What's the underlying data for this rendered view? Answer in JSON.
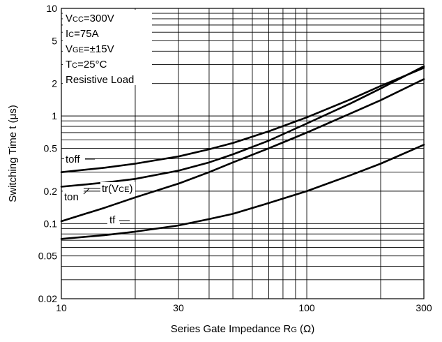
{
  "chart_data": {
    "type": "line",
    "xscale": "log",
    "yscale": "log",
    "xlim": [
      10,
      300
    ],
    "ylim": [
      0.02,
      10
    ],
    "grid": true,
    "xlabel": {
      "main": "Series Gate Impedance R",
      "sub": "G",
      "unit": "(Ω)"
    },
    "ylabel": "Switching Time t  (μs)",
    "x_ticks": [
      {
        "value": 10,
        "label": "10"
      },
      {
        "value": 30,
        "label": "30"
      },
      {
        "value": 100,
        "label": "100"
      },
      {
        "value": 300,
        "label": "300"
      }
    ],
    "y_ticks": [
      {
        "value": 0.02,
        "label": "0.02"
      },
      {
        "value": 0.05,
        "label": "0.05"
      },
      {
        "value": 0.1,
        "label": "0.1"
      },
      {
        "value": 0.2,
        "label": "0.2"
      },
      {
        "value": 0.5,
        "label": "0.5"
      },
      {
        "value": 1,
        "label": "1"
      },
      {
        "value": 2,
        "label": "2"
      },
      {
        "value": 5,
        "label": "5"
      },
      {
        "value": 10,
        "label": "10"
      }
    ],
    "conditions": [
      {
        "main": "V",
        "sub": "CC",
        "rest": "=300V"
      },
      {
        "main": "I",
        "sub": "C",
        "rest": "=75A"
      },
      {
        "main": "V",
        "sub": "GE",
        "rest": "=±15V"
      },
      {
        "main": "T",
        "sub": "C",
        "rest": "=25°C"
      },
      {
        "main": "Resistive Load",
        "sub": "",
        "rest": ""
      }
    ],
    "series": [
      {
        "name": "toff",
        "label_main": "toff",
        "label_sub": "",
        "label_end": "",
        "points": [
          [
            10,
            0.3
          ],
          [
            15,
            0.33
          ],
          [
            20,
            0.36
          ],
          [
            30,
            0.42
          ],
          [
            40,
            0.49
          ],
          [
            50,
            0.56
          ],
          [
            70,
            0.72
          ],
          [
            100,
            0.97
          ],
          [
            150,
            1.42
          ],
          [
            200,
            1.9
          ],
          [
            300,
            2.8
          ]
        ]
      },
      {
        "name": "ton",
        "label_main": "ton",
        "label_sub": "",
        "label_end": "",
        "points": [
          [
            10,
            0.22
          ],
          [
            15,
            0.24
          ],
          [
            20,
            0.26
          ],
          [
            30,
            0.31
          ],
          [
            40,
            0.37
          ],
          [
            50,
            0.44
          ],
          [
            70,
            0.59
          ],
          [
            100,
            0.85
          ],
          [
            150,
            1.3
          ],
          [
            200,
            1.8
          ],
          [
            300,
            2.9
          ]
        ]
      },
      {
        "name": "tr(VCE)",
        "label_main": "tr(V",
        "label_sub": "CE",
        "label_end": ")",
        "points": [
          [
            10,
            0.105
          ],
          [
            15,
            0.14
          ],
          [
            20,
            0.175
          ],
          [
            30,
            0.235
          ],
          [
            40,
            0.3
          ],
          [
            50,
            0.37
          ],
          [
            70,
            0.5
          ],
          [
            100,
            0.7
          ],
          [
            150,
            1.05
          ],
          [
            200,
            1.4
          ],
          [
            300,
            2.2
          ]
        ]
      },
      {
        "name": "tf",
        "label_main": "tf",
        "label_sub": "",
        "label_end": "",
        "points": [
          [
            10,
            0.072
          ],
          [
            15,
            0.078
          ],
          [
            20,
            0.084
          ],
          [
            30,
            0.096
          ],
          [
            40,
            0.11
          ],
          [
            50,
            0.123
          ],
          [
            70,
            0.155
          ],
          [
            100,
            0.2
          ],
          [
            150,
            0.28
          ],
          [
            200,
            0.36
          ],
          [
            300,
            0.54
          ]
        ]
      }
    ]
  }
}
